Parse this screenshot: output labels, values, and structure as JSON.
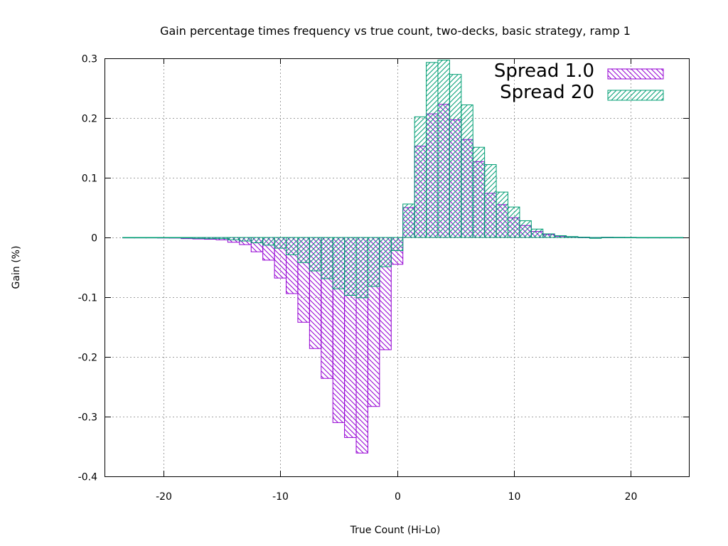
{
  "chart_data": {
    "type": "bar",
    "title": "Gain percentage times frequency vs true count, two-decks, basic strategy, ramp 1",
    "xlabel": "True Count (Hi-Lo)",
    "ylabel": "Gain (%)",
    "xlim": [
      -25,
      25
    ],
    "ylim": [
      -0.4,
      0.3
    ],
    "xticks": [
      -20,
      -10,
      0,
      10,
      20
    ],
    "xtick_labels": [
      "-20",
      "-10",
      "0",
      "10",
      "20"
    ],
    "yticks": [
      -0.4,
      -0.3,
      -0.2,
      -0.1,
      0,
      0.1,
      0.2,
      0.3
    ],
    "ytick_labels": [
      "-0.4",
      "-0.3",
      "-0.2",
      "-0.1",
      "0",
      "0.1",
      "0.2",
      "0.3"
    ],
    "grid": true,
    "legend_position": "top-right",
    "bin_width": 1,
    "categories": [
      -23,
      -22,
      -21,
      -20,
      -19,
      -18,
      -17,
      -16,
      -15,
      -14,
      -13,
      -12,
      -11,
      -10,
      -9,
      -8,
      -7,
      -6,
      -5,
      -4,
      -3,
      -2,
      -1,
      0,
      1,
      2,
      3,
      4,
      5,
      6,
      7,
      8,
      9,
      10,
      11,
      12,
      13,
      14,
      15,
      16,
      17,
      18,
      19,
      20,
      21,
      22,
      23,
      24
    ],
    "series": [
      {
        "name": "Spread 1.0",
        "color": "#9400d3",
        "pattern": "diagonal-down",
        "values": [
          -0.0003,
          -0.0005,
          -0.0007,
          -0.0009,
          -0.001,
          -0.002,
          -0.0025,
          -0.003,
          -0.004,
          -0.008,
          -0.012,
          -0.024,
          -0.038,
          -0.068,
          -0.094,
          -0.142,
          -0.186,
          -0.236,
          -0.31,
          -0.335,
          -0.361,
          -0.283,
          -0.188,
          -0.045,
          0.05,
          0.153,
          0.207,
          0.223,
          0.197,
          0.164,
          0.127,
          0.074,
          0.055,
          0.033,
          0.02,
          0.01,
          0.005,
          0.002,
          0.001,
          0.0003,
          -0.001,
          0.0002,
          0.0001,
          0.0001,
          0,
          0,
          0,
          0
        ]
      },
      {
        "name": "Spread 20",
        "color": "#009e73",
        "pattern": "diagonal-up",
        "values": [
          0,
          0,
          0,
          0,
          0,
          -0.001,
          -0.0015,
          -0.002,
          -0.002,
          -0.004,
          -0.006,
          -0.009,
          -0.013,
          -0.018,
          -0.029,
          -0.042,
          -0.056,
          -0.069,
          -0.086,
          -0.097,
          -0.101,
          -0.082,
          -0.049,
          -0.022,
          0.056,
          0.202,
          0.293,
          0.297,
          0.273,
          0.222,
          0.151,
          0.122,
          0.076,
          0.051,
          0.028,
          0.014,
          0.006,
          0.003,
          0.0015,
          0.0005,
          -0.0015,
          0.0003,
          0.0002,
          0.0001,
          0,
          0,
          0,
          0
        ]
      }
    ]
  }
}
